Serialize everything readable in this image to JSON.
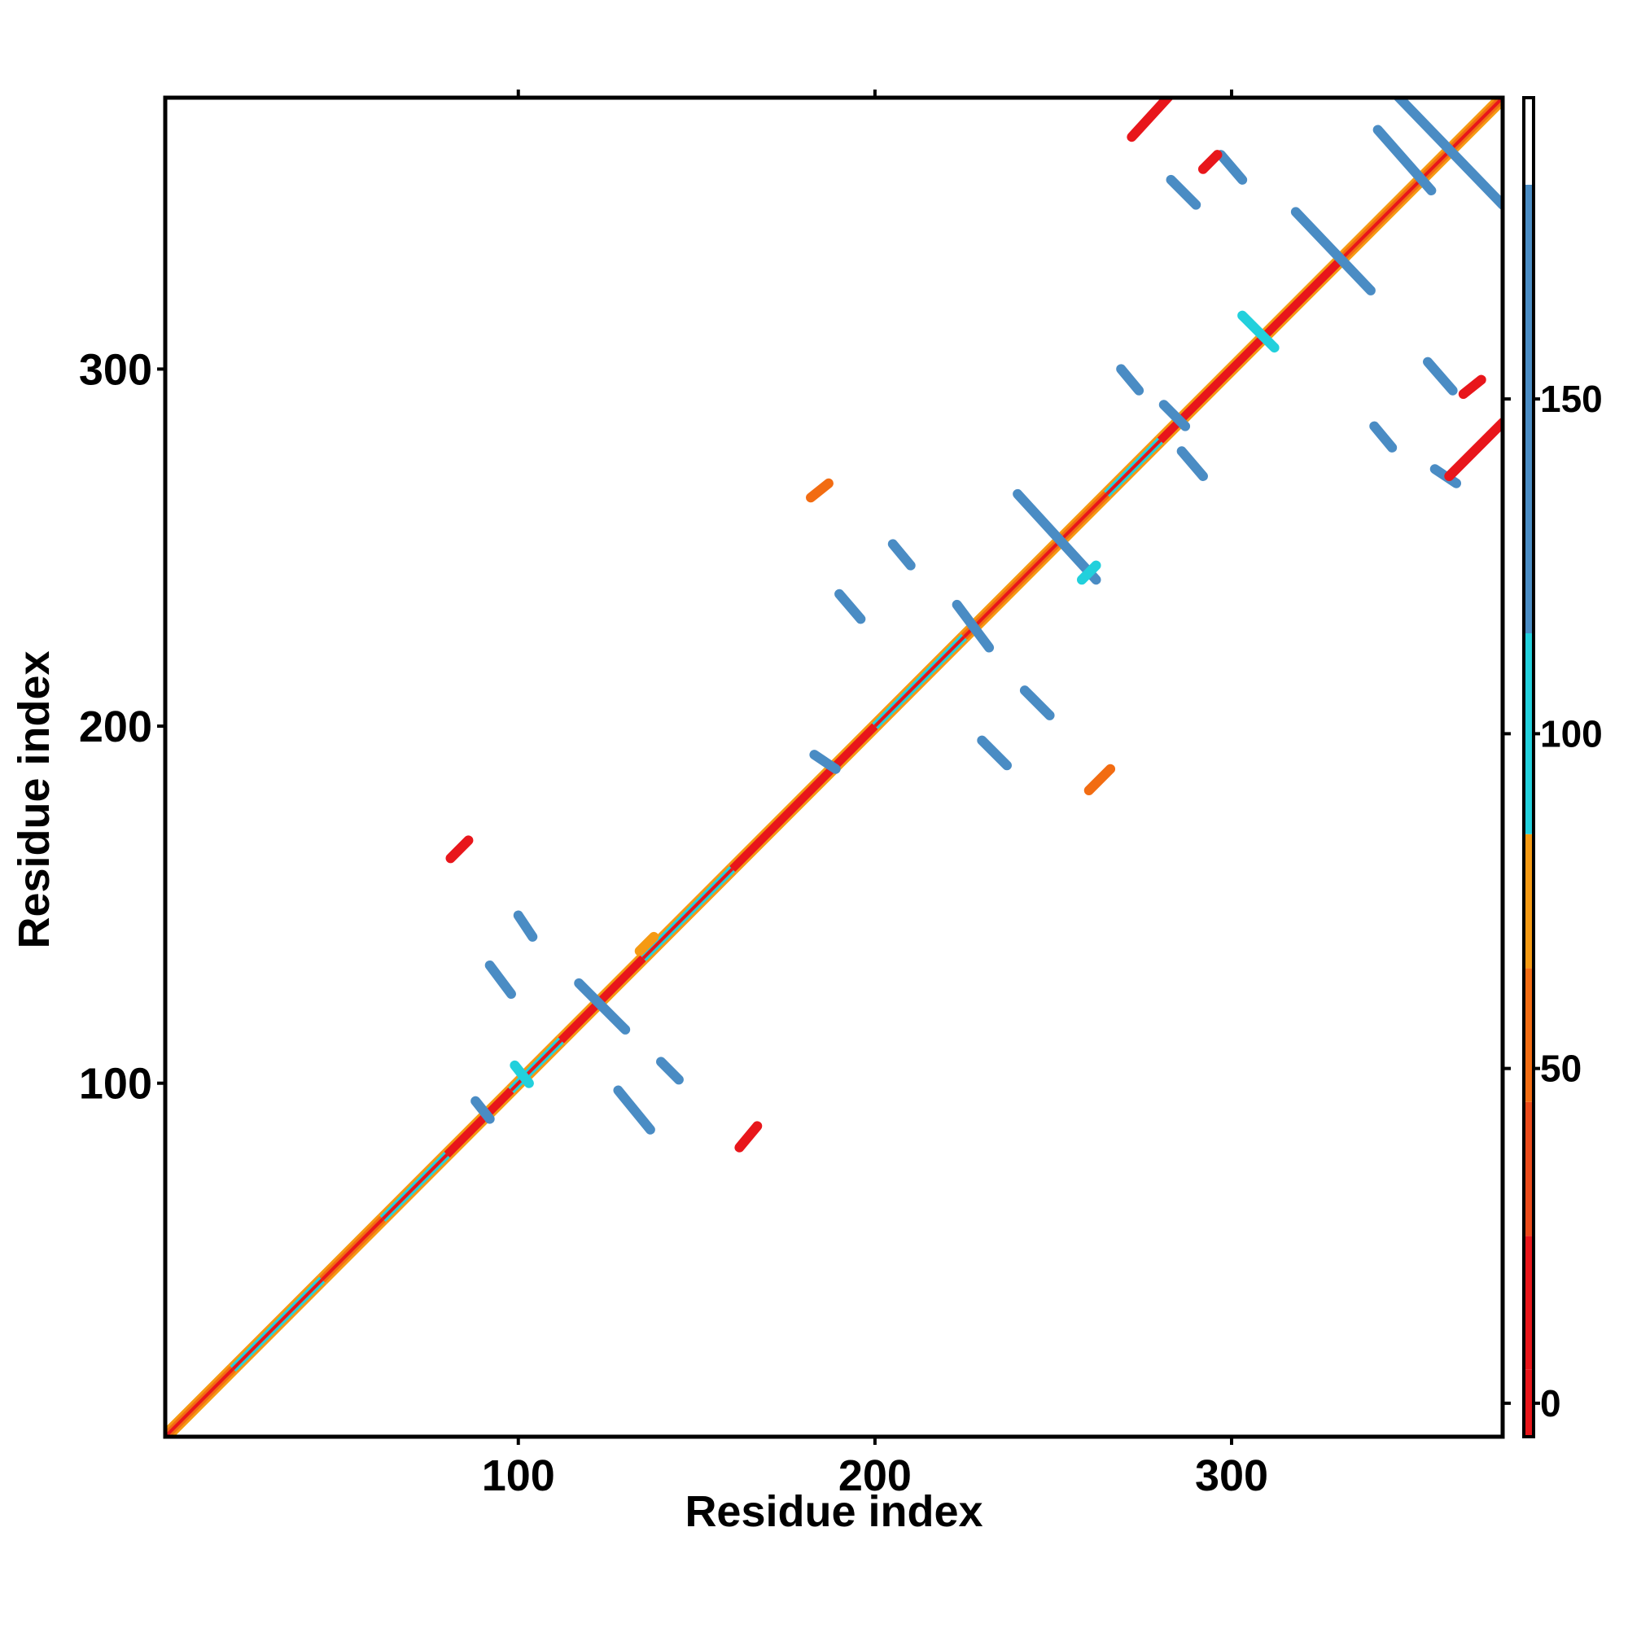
{
  "chart_data": {
    "type": "heatmap",
    "title": "",
    "xlabel": "Residue index",
    "ylabel": "Residue index",
    "xlim": [
      1,
      376
    ],
    "ylim": [
      1,
      376
    ],
    "x_ticks": [
      100,
      200,
      300
    ],
    "y_ticks": [
      100,
      200,
      300
    ],
    "colorbar": {
      "ticks": [
        0,
        50,
        100,
        150
      ],
      "range": [
        -5,
        195
      ],
      "bands": [
        {
          "from": -5,
          "to": 5,
          "color": "#e8161b"
        },
        {
          "from": 5,
          "to": 25,
          "color": "#e8161b"
        },
        {
          "from": 25,
          "to": 45,
          "color": "#ea4a1a"
        },
        {
          "from": 45,
          "to": 65,
          "color": "#f26c12"
        },
        {
          "from": 65,
          "to": 85,
          "color": "#f59a13"
        },
        {
          "from": 85,
          "to": 115,
          "color": "#22d0dc"
        },
        {
          "from": 115,
          "to": 182,
          "color": "#4a8cc4"
        },
        {
          "from": 182,
          "to": 195,
          "color": "#ffffff"
        }
      ]
    },
    "diagonal": {
      "from": 1,
      "to": 376
    },
    "diagonal_segments": [
      {
        "from": 1,
        "to": 20,
        "color": "#f26c12"
      },
      {
        "from": 20,
        "to": 45,
        "color": "#22d0dc"
      },
      {
        "from": 45,
        "to": 62,
        "color": "#f26c12"
      },
      {
        "from": 62,
        "to": 80,
        "color": "#22d0dc"
      },
      {
        "from": 80,
        "to": 98,
        "color": "#e8161b"
      },
      {
        "from": 98,
        "to": 112,
        "color": "#22d0dc"
      },
      {
        "from": 112,
        "to": 135,
        "color": "#e8161b"
      },
      {
        "from": 135,
        "to": 160,
        "color": "#22d0dc"
      },
      {
        "from": 160,
        "to": 200,
        "color": "#e8161b"
      },
      {
        "from": 200,
        "to": 225,
        "color": "#22d0dc"
      },
      {
        "from": 225,
        "to": 265,
        "color": "#f26c12"
      },
      {
        "from": 265,
        "to": 280,
        "color": "#22d0dc"
      },
      {
        "from": 280,
        "to": 330,
        "color": "#e8161b"
      },
      {
        "from": 330,
        "to": 376,
        "color": "#f26c12"
      }
    ],
    "contact_segments": [
      {
        "x1": 88,
        "y1": 95,
        "x2": 92,
        "y2": 90,
        "color": "#4a8cc4"
      },
      {
        "x1": 99,
        "y1": 105,
        "x2": 103,
        "y2": 100,
        "color": "#22d0dc"
      },
      {
        "x1": 117,
        "y1": 128,
        "x2": 130,
        "y2": 115,
        "color": "#4a8cc4"
      },
      {
        "x1": 128,
        "y1": 98,
        "x2": 137,
        "y2": 87,
        "color": "#4a8cc4"
      },
      {
        "x1": 140,
        "y1": 106,
        "x2": 145,
        "y2": 101,
        "color": "#4a8cc4"
      },
      {
        "x1": 92,
        "y1": 133,
        "x2": 98,
        "y2": 125,
        "color": "#4a8cc4"
      },
      {
        "x1": 100,
        "y1": 147,
        "x2": 104,
        "y2": 141,
        "color": "#4a8cc4"
      },
      {
        "x1": 81,
        "y1": 163,
        "x2": 86,
        "y2": 168,
        "color": "#e8161b"
      },
      {
        "x1": 162,
        "y1": 82,
        "x2": 167,
        "y2": 88,
        "color": "#e8161b"
      },
      {
        "x1": 134,
        "y1": 137,
        "x2": 138,
        "y2": 141,
        "color": "#f59a13"
      },
      {
        "x1": 190,
        "y1": 237,
        "x2": 196,
        "y2": 230,
        "color": "#4a8cc4"
      },
      {
        "x1": 182,
        "y1": 264,
        "x2": 187,
        "y2": 268,
        "color": "#f26c12"
      },
      {
        "x1": 205,
        "y1": 251,
        "x2": 210,
        "y2": 245,
        "color": "#4a8cc4"
      },
      {
        "x1": 223,
        "y1": 234,
        "x2": 232,
        "y2": 222,
        "color": "#4a8cc4"
      },
      {
        "x1": 240,
        "y1": 265,
        "x2": 262,
        "y2": 241,
        "color": "#4a8cc4"
      },
      {
        "x1": 230,
        "y1": 196,
        "x2": 237,
        "y2": 189,
        "color": "#4a8cc4"
      },
      {
        "x1": 242,
        "y1": 210,
        "x2": 249,
        "y2": 203,
        "color": "#4a8cc4"
      },
      {
        "x1": 260,
        "y1": 182,
        "x2": 266,
        "y2": 188,
        "color": "#f26c12"
      },
      {
        "x1": 183,
        "y1": 192,
        "x2": 189,
        "y2": 188,
        "color": "#4a8cc4"
      },
      {
        "x1": 269,
        "y1": 300,
        "x2": 274,
        "y2": 294,
        "color": "#4a8cc4"
      },
      {
        "x1": 286,
        "y1": 277,
        "x2": 292,
        "y2": 270,
        "color": "#4a8cc4"
      },
      {
        "x1": 281,
        "y1": 290,
        "x2": 287,
        "y2": 284,
        "color": "#4a8cc4"
      },
      {
        "x1": 272,
        "y1": 365,
        "x2": 283,
        "y2": 377,
        "color": "#e8161b"
      },
      {
        "x1": 303,
        "y1": 315,
        "x2": 312,
        "y2": 306,
        "color": "#22d0dc"
      },
      {
        "x1": 318,
        "y1": 344,
        "x2": 339,
        "y2": 322,
        "color": "#4a8cc4"
      },
      {
        "x1": 341,
        "y1": 367,
        "x2": 356,
        "y2": 350,
        "color": "#4a8cc4"
      },
      {
        "x1": 346,
        "y1": 377,
        "x2": 376,
        "y2": 346,
        "color": "#4a8cc4"
      },
      {
        "x1": 283,
        "y1": 353,
        "x2": 290,
        "y2": 346,
        "color": "#4a8cc4"
      },
      {
        "x1": 297,
        "y1": 360,
        "x2": 303,
        "y2": 353,
        "color": "#4a8cc4"
      },
      {
        "x1": 340,
        "y1": 284,
        "x2": 345,
        "y2": 278,
        "color": "#4a8cc4"
      },
      {
        "x1": 355,
        "y1": 302,
        "x2": 362,
        "y2": 294,
        "color": "#4a8cc4"
      },
      {
        "x1": 357,
        "y1": 272,
        "x2": 363,
        "y2": 268,
        "color": "#4a8cc4"
      },
      {
        "x1": 361,
        "y1": 270,
        "x2": 376,
        "y2": 285,
        "color": "#e8161b"
      },
      {
        "x1": 365,
        "y1": 293,
        "x2": 370,
        "y2": 297,
        "color": "#e8161b"
      },
      {
        "x1": 292,
        "y1": 356,
        "x2": 296,
        "y2": 360,
        "color": "#e8161b"
      },
      {
        "x1": 258,
        "y1": 241,
        "x2": 262,
        "y2": 245,
        "color": "#22d0dc"
      }
    ]
  }
}
